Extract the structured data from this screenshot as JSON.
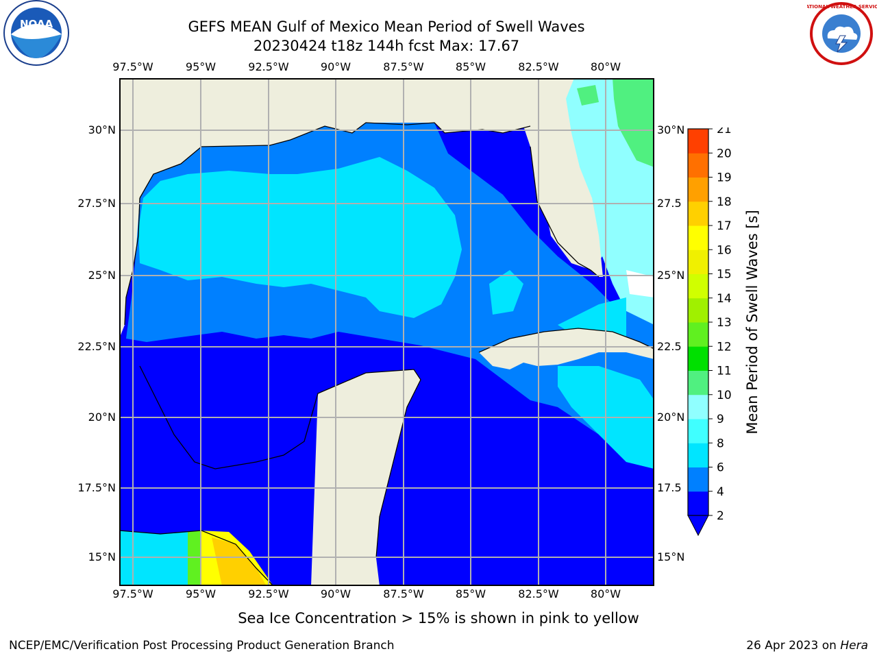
{
  "title": "GEFS MEAN Gulf of Mexico Mean Period of Swell Waves",
  "subtitle": "20230424 t18z 144h fcst   Max: 17.67",
  "logos": {
    "left": "noaa-logo",
    "right": "national-weather-service-logo",
    "left_text": "NOAA",
    "right_text": "NATIONAL WEATHER SERVICE"
  },
  "map": {
    "lon_labels": [
      "97.5°W",
      "95°W",
      "92.5°W",
      "90°W",
      "87.5°W",
      "85°W",
      "82.5°W",
      "80°W"
    ],
    "lat_labels_left": [
      "30°N",
      "27.5°N",
      "25°N",
      "22.5°N",
      "20°N",
      "17.5°N",
      "15°N"
    ],
    "lat_labels_right": [
      "30°N",
      "27.5",
      "25°N",
      "22.5",
      "20°N",
      "17.5",
      "15°N"
    ],
    "colors": {
      "land": "#eeeedd",
      "grid": "#b0b0b0",
      "coast": "#000000"
    }
  },
  "colorbar": {
    "label": "Mean Period of Swell Waves [s]",
    "ticks": [
      "2",
      "4",
      "6",
      "8",
      "9",
      "10",
      "11",
      "12",
      "13",
      "14",
      "15",
      "16",
      "17",
      "18",
      "19",
      "20",
      "21"
    ],
    "colors": [
      "#0000ff",
      "#0080ff",
      "#00e5ff",
      "#40ffff",
      "#90ffff",
      "#50f080",
      "#00e000",
      "#60f020",
      "#a0f000",
      "#d0ff00",
      "#f0f000",
      "#ffff00",
      "#ffd000",
      "#ffa000",
      "#ff7000",
      "#ff4000",
      "#ff0000"
    ]
  },
  "note": "Sea Ice Concentration > 15% is shown in pink to yellow",
  "footer": {
    "left": "NCEP/EMC/Verification Post Processing Product Generation Branch",
    "date": "26 Apr 2023 on ",
    "machine": "Hera"
  }
}
